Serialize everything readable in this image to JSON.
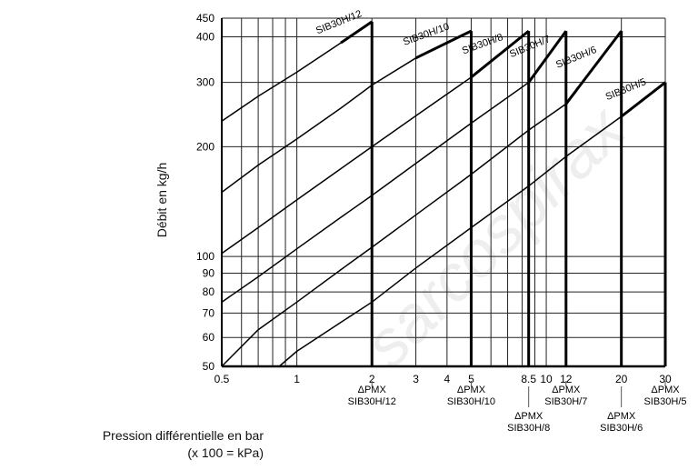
{
  "watermark": "sarcospirax",
  "chart_data": {
    "type": "line",
    "xscale": "log",
    "yscale": "log",
    "xlim": [
      0.5,
      30
    ],
    "ylim": [
      50,
      450
    ],
    "ylabel": "Débit en kg/h",
    "xlabel_line1": "Pression différentielle en bar",
    "xlabel_line2": "(x 100 = kPa)",
    "x_ticks": [
      0.5,
      1,
      2,
      3,
      4,
      5,
      8.5,
      10,
      12,
      20,
      30
    ],
    "x_tick_labels": [
      "0.5",
      "1",
      "2",
      "3",
      "4",
      "5",
      "8.5",
      "10",
      "12",
      "20",
      "30"
    ],
    "y_ticks": [
      50,
      60,
      70,
      80,
      90,
      100,
      200,
      300,
      400,
      450
    ],
    "y_tick_labels": [
      "50",
      "60",
      "70",
      "80",
      "90",
      "100",
      "200",
      "300",
      "400",
      "450"
    ],
    "x_grid": [
      0.5,
      0.6,
      0.7,
      0.8,
      0.9,
      1,
      2,
      3,
      4,
      5,
      6,
      7,
      8,
      9,
      10,
      20,
      30
    ],
    "y_grid": [
      50,
      60,
      70,
      80,
      90,
      100,
      200,
      300,
      400,
      450
    ],
    "grid": true,
    "series": [
      {
        "name": "SIB30H/12",
        "x": [
          0.5,
          0.7,
          1,
          1.5,
          2
        ],
        "y": [
          235,
          275,
          320,
          385,
          440
        ],
        "pmx": 2
      },
      {
        "name": "SIB30H/10",
        "x": [
          0.5,
          0.7,
          1,
          1.5,
          2,
          3,
          5
        ],
        "y": [
          150,
          178,
          210,
          255,
          295,
          350,
          415
        ],
        "pmx": 5
      },
      {
        "name": "SIB30H/8",
        "x": [
          0.5,
          0.7,
          1,
          1.5,
          2,
          3,
          5,
          8.5
        ],
        "y": [
          102,
          120,
          143,
          174,
          200,
          243,
          310,
          415
        ],
        "pmx": 8.5
      },
      {
        "name": "SIB30H/7",
        "x": [
          0.5,
          0.7,
          1,
          1.5,
          2,
          3,
          5,
          8.5,
          12
        ],
        "y": [
          75,
          88,
          105,
          128,
          147,
          180,
          232,
          300,
          415
        ],
        "pmx": 12
      },
      {
        "name": "SIB30H/6",
        "x": [
          0.5,
          0.7,
          1,
          1.5,
          2,
          3,
          5,
          8.5,
          12,
          20
        ],
        "y": [
          50,
          63,
          75,
          92,
          106,
          130,
          168,
          222,
          262,
          415
        ],
        "pmx": 20
      },
      {
        "name": "SIB30H/5",
        "x": [
          0.85,
          1,
          1.5,
          2,
          3,
          5,
          8.5,
          12,
          20,
          30
        ],
        "y": [
          50,
          55,
          66,
          75,
          93,
          120,
          156,
          188,
          242,
          300
        ],
        "pmx": 30
      }
    ],
    "annotations": [
      {
        "x": 2,
        "line1": "ΔPMX",
        "line2": "SIB30H/12",
        "row": 0
      },
      {
        "x": 5,
        "line1": "ΔPMX",
        "line2": "SIB30H/10",
        "row": 0
      },
      {
        "x": 8.5,
        "line1": "ΔPMX",
        "line2": "SIB30H/8",
        "row": 1
      },
      {
        "x": 12,
        "line1": "ΔPMX",
        "line2": "SIB30H/7",
        "row": 0
      },
      {
        "x": 20,
        "line1": "ΔPMX",
        "line2": "SIB30H/6",
        "row": 1
      },
      {
        "x": 30,
        "line1": "ΔPMX",
        "line2": "SIB30H/5",
        "row": 0
      }
    ]
  }
}
